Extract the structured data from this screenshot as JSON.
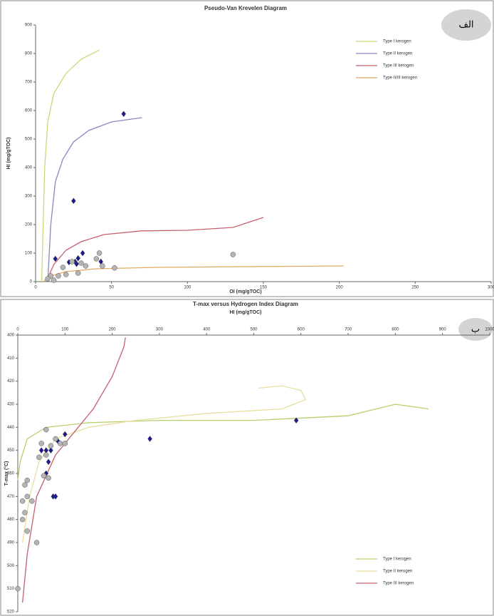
{
  "chart_data": [
    {
      "type": "scatter",
      "title": "Pseudo-Van Krevelen Diagram",
      "xlabel": "OI (mg/gTOC)",
      "ylabel": "HI (mg/gTOC)",
      "annotation": "الف",
      "xlim": [
        0,
        300
      ],
      "xticks": [
        0,
        50,
        100,
        150,
        200,
        250,
        300
      ],
      "ylim": [
        0,
        900
      ],
      "yticks": [
        0,
        100,
        200,
        300,
        400,
        500,
        600,
        700,
        800,
        900
      ],
      "y_inverted": false,
      "xaxis_position": "bottom",
      "legend": "upper right",
      "series": [
        {
          "name": "Type I kerogen",
          "color": "#c9d77a",
          "x": [
            4,
            5,
            6,
            8,
            12,
            20,
            30,
            42
          ],
          "y": [
            0,
            200,
            400,
            560,
            660,
            730,
            780,
            812
          ]
        },
        {
          "name": "Type II kerogen",
          "color": "#8c86c4",
          "x": [
            8,
            10,
            13,
            18,
            25,
            35,
            50,
            70
          ],
          "y": [
            0,
            200,
            350,
            430,
            490,
            530,
            560,
            575
          ]
        },
        {
          "name": "Type III kerogen",
          "color": "#c4606e",
          "x": [
            7,
            12,
            20,
            30,
            45,
            70,
            100,
            130,
            150
          ],
          "y": [
            0,
            60,
            110,
            140,
            165,
            178,
            180,
            190,
            225
          ]
        },
        {
          "name": "Type II/III kerogen",
          "color": "#e2ab62",
          "x": [
            5,
            10,
            20,
            40,
            80,
            150,
            203
          ],
          "y": [
            0,
            20,
            35,
            45,
            50,
            53,
            55
          ]
        },
        {
          "marker": "diamond",
          "color": "#1a1a8c",
          "x": [
            58,
            25,
            13,
            31,
            28,
            26,
            22,
            27,
            43
          ],
          "y": [
            588,
            283,
            80,
            100,
            82,
            70,
            68,
            62,
            70
          ]
        },
        {
          "marker": "circle",
          "color": "#b4b4b4",
          "x": [
            42,
            44,
            52,
            40,
            130,
            18,
            20,
            10,
            8,
            12,
            15,
            28,
            30,
            24,
            33
          ],
          "y": [
            100,
            55,
            48,
            80,
            95,
            50,
            25,
            20,
            10,
            5,
            20,
            30,
            65,
            70,
            55
          ]
        }
      ]
    },
    {
      "type": "scatter",
      "title": "T-max versus Hydrogen Index Diagram",
      "xlabel": "HI (mg/gTOC)",
      "ylabel": "T-max (°C)",
      "annotation": "ب",
      "xlim": [
        0,
        1000
      ],
      "xticks": [
        0,
        100,
        200,
        300,
        400,
        500,
        600,
        700,
        800,
        900,
        1000
      ],
      "ylim": [
        400,
        520
      ],
      "yticks": [
        400,
        410,
        420,
        430,
        440,
        450,
        460,
        470,
        480,
        490,
        500,
        510,
        520
      ],
      "y_inverted": true,
      "xaxis_position": "top",
      "legend": "lower right",
      "series": [
        {
          "name": "Type I kerogen",
          "color": "#b8cf6a",
          "x": [
            0,
            5,
            20,
            60,
            150,
            300,
            500,
            700,
            800,
            870
          ],
          "y": [
            463,
            455,
            445,
            440,
            438,
            437,
            437,
            435,
            430,
            432
          ]
        },
        {
          "name": "Type II kerogen",
          "color": "#e6df9e",
          "x": [
            10,
            25,
            45,
            80,
            150,
            250,
            400,
            560,
            610,
            600,
            560,
            510
          ],
          "y": [
            490,
            470,
            455,
            445,
            440,
            437,
            434,
            432,
            428,
            424,
            422,
            423
          ]
        },
        {
          "name": "Type III kerogen",
          "color": "#c4606e",
          "x": [
            10,
            20,
            40,
            80,
            120,
            160,
            200,
            225,
            228
          ],
          "y": [
            516,
            495,
            470,
            452,
            442,
            432,
            418,
            405,
            401
          ]
        },
        {
          "marker": "diamond",
          "color": "#1a1a8c",
          "x": [
            590,
            280,
            100,
            85,
            60,
            70,
            65,
            60,
            75,
            80,
            50
          ],
          "y": [
            437,
            445,
            443,
            446,
            450,
            450,
            455,
            460,
            470,
            470,
            450
          ]
        },
        {
          "marker": "circle",
          "color": "#b4b4b4",
          "x": [
            60,
            80,
            90,
            100,
            50,
            45,
            60,
            55,
            65,
            20,
            15,
            20,
            30,
            10,
            15,
            20,
            10,
            40,
            0,
            70
          ],
          "y": [
            441,
            445,
            447,
            447,
            447,
            453,
            452,
            461,
            462,
            463,
            465,
            470,
            472,
            472,
            477,
            485,
            480,
            490,
            510,
            448
          ]
        }
      ]
    }
  ]
}
